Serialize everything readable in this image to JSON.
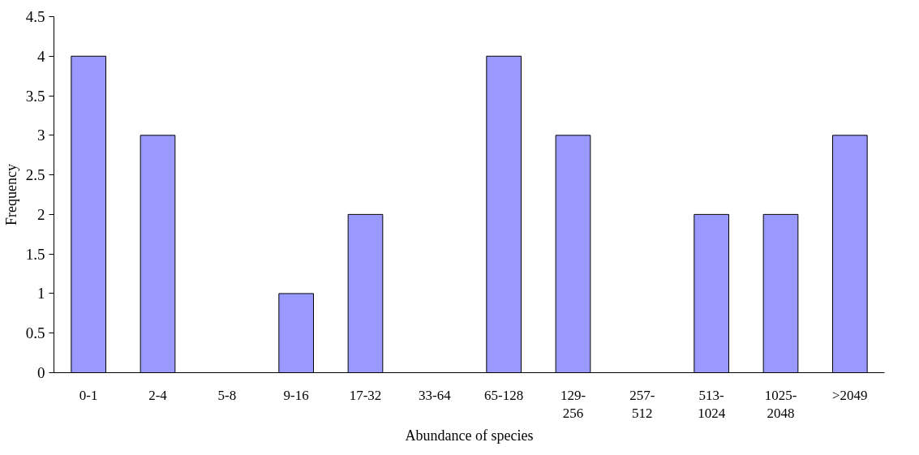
{
  "chart_data": {
    "type": "bar",
    "xlabel": "Abundance of species",
    "ylabel": "Frequency",
    "categories": [
      "0-1",
      "2-4",
      "5-8",
      "9-16",
      "17-32",
      "33-64",
      "65-128",
      "129-256",
      "257-512",
      "513-1024",
      "1025-2048",
      ">2049"
    ],
    "values": [
      4,
      3,
      0,
      1,
      2,
      0,
      4,
      3,
      0,
      2,
      2,
      3
    ],
    "color": "#9999ff",
    "ylim": [
      0,
      4.5
    ],
    "yticks": [
      0,
      0.5,
      1,
      1.5,
      2,
      2.5,
      3,
      3.5,
      4,
      4.5
    ],
    "grid": false
  }
}
